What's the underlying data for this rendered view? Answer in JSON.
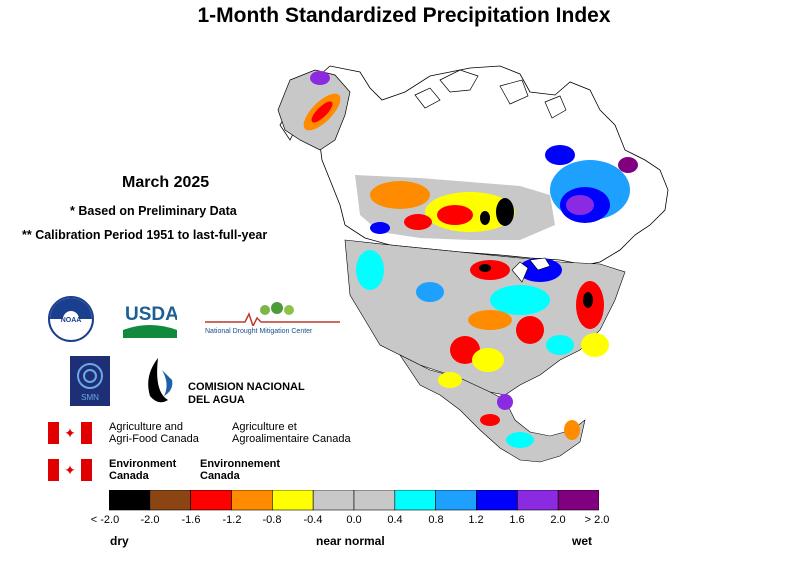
{
  "title": "1-Month Standardized Precipitation Index",
  "info": {
    "month": "March 2025",
    "preliminary": "* Based on Preliminary Data",
    "calibration": "** Calibration Period 1951 to last-full-year"
  },
  "logos": {
    "noaa": "NOAA",
    "usda": "USDA",
    "ndmc": "National Drought Mitigation Center",
    "smn": "SMN",
    "conagua": [
      "COMISION NACIONAL",
      "DEL AGUA"
    ],
    "agriculture": [
      [
        "Agriculture and",
        "Agri-Food Canada"
      ],
      [
        "Agriculture et",
        "Agroalimentaire Canada"
      ]
    ],
    "environment": [
      [
        "Environment",
        "Canada"
      ],
      [
        "Environnement",
        "Canada"
      ]
    ]
  },
  "legend": {
    "colors": [
      "#000000",
      "#8b4513",
      "#ff0000",
      "#ff8c00",
      "#ffff00",
      "#c8c8c8",
      "#c8c8c8",
      "#00ffff",
      "#1ea0ff",
      "#0000ff",
      "#8a2be2",
      "#800080"
    ],
    "ticks": [
      "< -2.0",
      "-2.0",
      "-1.6",
      "-1.2",
      "-0.8",
      "-0.4",
      "0.0",
      "0.4",
      "0.8",
      "1.2",
      "1.6",
      "2.0",
      "> 2.0"
    ],
    "labels": {
      "dry": "dry",
      "normal": "near normal",
      "wet": "wet"
    }
  }
}
